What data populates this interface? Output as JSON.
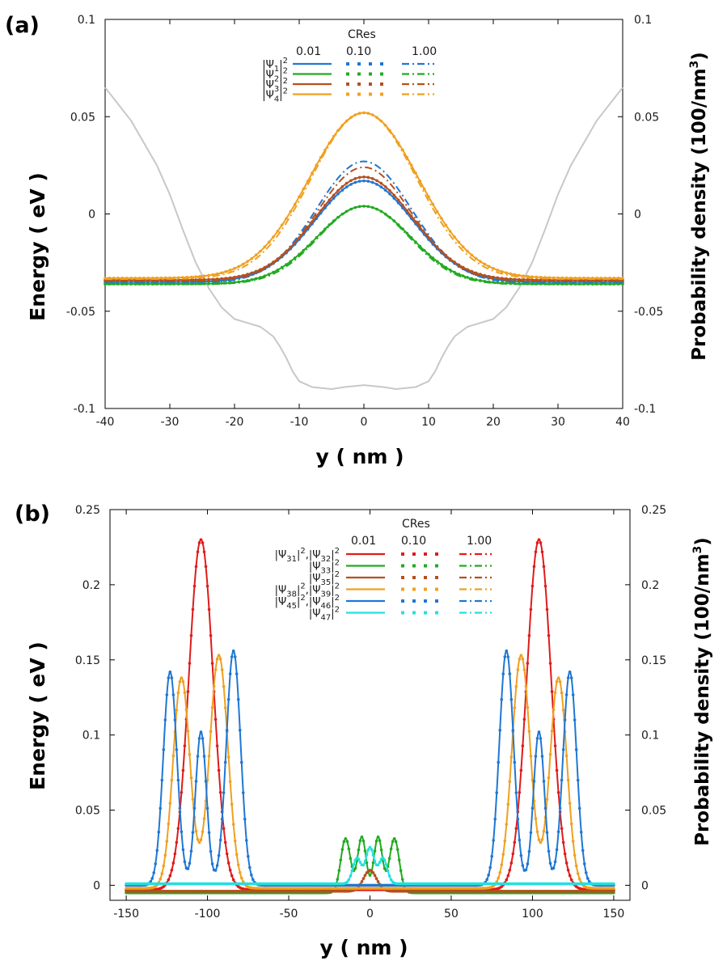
{
  "chart_data": [
    {
      "panel_label": "(a)",
      "type": "line",
      "xlabel": "y ( nm )",
      "ylabel": "Energy ( eV )",
      "y2label": "Probability density (100/nm",
      "y2label_sup": "3",
      "y2label_end": ")",
      "xlim": [
        -40,
        40
      ],
      "ylim": [
        -0.1,
        0.1
      ],
      "y2lim": [
        -0.1,
        0.1
      ],
      "xticks": [
        "-40",
        "-30",
        "-20",
        "-10",
        "0",
        "10",
        "20",
        "30",
        "40"
      ],
      "yticks": [
        "-0.1",
        "-0.05",
        "0",
        "0.05",
        "0.1"
      ],
      "y2ticks": [
        "-0.1",
        "-0.05",
        "0",
        "0.05",
        "0.1"
      ],
      "legend": {
        "title": "CRes",
        "columns": [
          "0.01",
          "0.10",
          "1.00"
        ],
        "position": "top-center",
        "entries": [
          {
            "label": "|Ψ1|2",
            "color": "#1f77d4"
          },
          {
            "label": "|Ψ2|2",
            "color": "#22aa22"
          },
          {
            "label": "|Ψ3|2",
            "color": "#b5501e"
          },
          {
            "label": "|Ψ4|2",
            "color": "#f0a020"
          }
        ]
      },
      "potential": {
        "color": "#c8c8c8",
        "x": [
          -40,
          -36,
          -32,
          -30,
          -28,
          -26,
          -24,
          -22,
          -20,
          -18,
          -16,
          -14,
          -13,
          -12,
          -11,
          -10,
          -8,
          -5,
          -3,
          0,
          3,
          5,
          8,
          10,
          11,
          12,
          13,
          14,
          16,
          18,
          20,
          22,
          24,
          26,
          28,
          30,
          32,
          36,
          40
        ],
        "y": [
          0.065,
          0.048,
          0.025,
          0.01,
          -0.008,
          -0.025,
          -0.038,
          -0.048,
          -0.054,
          -0.056,
          -0.058,
          -0.063,
          -0.068,
          -0.074,
          -0.081,
          -0.086,
          -0.089,
          -0.09,
          -0.089,
          -0.088,
          -0.089,
          -0.09,
          -0.089,
          -0.086,
          -0.081,
          -0.074,
          -0.068,
          -0.063,
          -0.058,
          -0.056,
          -0.054,
          -0.048,
          -0.038,
          -0.025,
          -0.008,
          0.01,
          0.025,
          0.048,
          0.065
        ]
      },
      "series": [
        {
          "name": "|Ψ1|2",
          "color": "#1f77d4",
          "baseline": -0.035,
          "peak": 0.017,
          "width": 7.6,
          "peak_cres_1": 0.027,
          "baseline_cres_1": -0.0355
        },
        {
          "name": "|Ψ2|2",
          "color": "#22aa22",
          "baseline": -0.036,
          "peak": 0.004,
          "width": 7.2,
          "peak_cres_1": 0.004,
          "baseline_cres_1": -0.0362
        },
        {
          "name": "|Ψ3|2",
          "color": "#b5501e",
          "baseline": -0.034,
          "peak": 0.019,
          "width": 7.5,
          "peak_cres_1": 0.024,
          "baseline_cres_1": -0.0345
        },
        {
          "name": "|Ψ4|2",
          "color": "#f0a020",
          "baseline": -0.033,
          "peak": 0.052,
          "width": 8.4,
          "peak_cres_1": 0.052,
          "baseline_cres_1": -0.0335
        }
      ]
    },
    {
      "panel_label": "(b)",
      "type": "line",
      "xlabel": "y ( nm )",
      "ylabel": "Energy ( eV )",
      "y2label": "Probability density (100/nm",
      "y2label_sup": "3",
      "y2label_end": ")",
      "xlim": [
        -160,
        160
      ],
      "ylim": [
        -0.01,
        0.25
      ],
      "y2lim": [
        -0.01,
        0.25
      ],
      "xticks": [
        "-150",
        "-100",
        "-50",
        "0",
        "50",
        "100",
        "150"
      ],
      "yticks": [
        "0",
        "0.05",
        "0.1",
        "0.15",
        "0.2",
        "0.25"
      ],
      "y2ticks": [
        "0",
        "0.05",
        "0.1",
        "0.15",
        "0.2",
        "0.25"
      ],
      "legend": {
        "title": "CRes",
        "columns": [
          "0.01",
          "0.10",
          "1.00"
        ],
        "position": "top-center",
        "entries": [
          {
            "label": "|Ψ31|2,|Ψ32|2",
            "color": "#e01b1b"
          },
          {
            "label": "|Ψ33|2",
            "color": "#22aa22"
          },
          {
            "label": "|Ψ35|2",
            "color": "#b5501e"
          },
          {
            "label": "|Ψ38|2,|Ψ39|2",
            "color": "#f0a020"
          },
          {
            "label": "|Ψ45|2,|Ψ46|2",
            "color": "#1f77d4"
          },
          {
            "label": "|Ψ47|2",
            "color": "#22e0e0"
          }
        ]
      },
      "series": [
        {
          "name": "|Ψ31|2,|Ψ32|2",
          "color": "#e01b1b",
          "baseline": -0.003,
          "peaks": [
            [
              -104,
              0.23,
              7.5
            ],
            [
              104,
              0.23,
              7.5
            ]
          ]
        },
        {
          "name": "|Ψ33|2",
          "color": "#22aa22",
          "baseline": -0.005,
          "peaks": [
            [
              -15,
              0.031,
              3.0
            ],
            [
              -5,
              0.032,
              2.6
            ],
            [
              5,
              0.032,
              2.6
            ],
            [
              15,
              0.031,
              3.0
            ]
          ]
        },
        {
          "name": "|Ψ35|2",
          "color": "#b5501e",
          "baseline": -0.004,
          "peaks": [
            [
              0,
              0.01,
              4.0
            ]
          ]
        },
        {
          "name": "|Ψ38|2,|Ψ39|2",
          "color": "#f0a020",
          "baseline": -0.002,
          "peaks": [
            [
              -116,
              0.138,
              5.2
            ],
            [
              -93,
              0.153,
              5.6
            ],
            [
              93,
              0.153,
              5.6
            ],
            [
              116,
              0.138,
              5.2
            ]
          ]
        },
        {
          "name": "|Ψ45|2,|Ψ46|2",
          "color": "#1f77d4",
          "baseline": 0.0,
          "peaks": [
            [
              -123,
              0.142,
              4.2
            ],
            [
              -104,
              0.102,
              3.4
            ],
            [
              -84,
              0.156,
              4.4
            ],
            [
              84,
              0.156,
              4.4
            ],
            [
              104,
              0.102,
              3.4
            ],
            [
              123,
              0.142,
              4.2
            ]
          ]
        },
        {
          "name": "|Ψ47|2",
          "color": "#22e0e0",
          "baseline": 0.001,
          "peaks": [
            [
              -8,
              0.018,
              2.6
            ],
            [
              0,
              0.025,
              2.6
            ],
            [
              8,
              0.018,
              2.6
            ]
          ]
        }
      ]
    }
  ]
}
